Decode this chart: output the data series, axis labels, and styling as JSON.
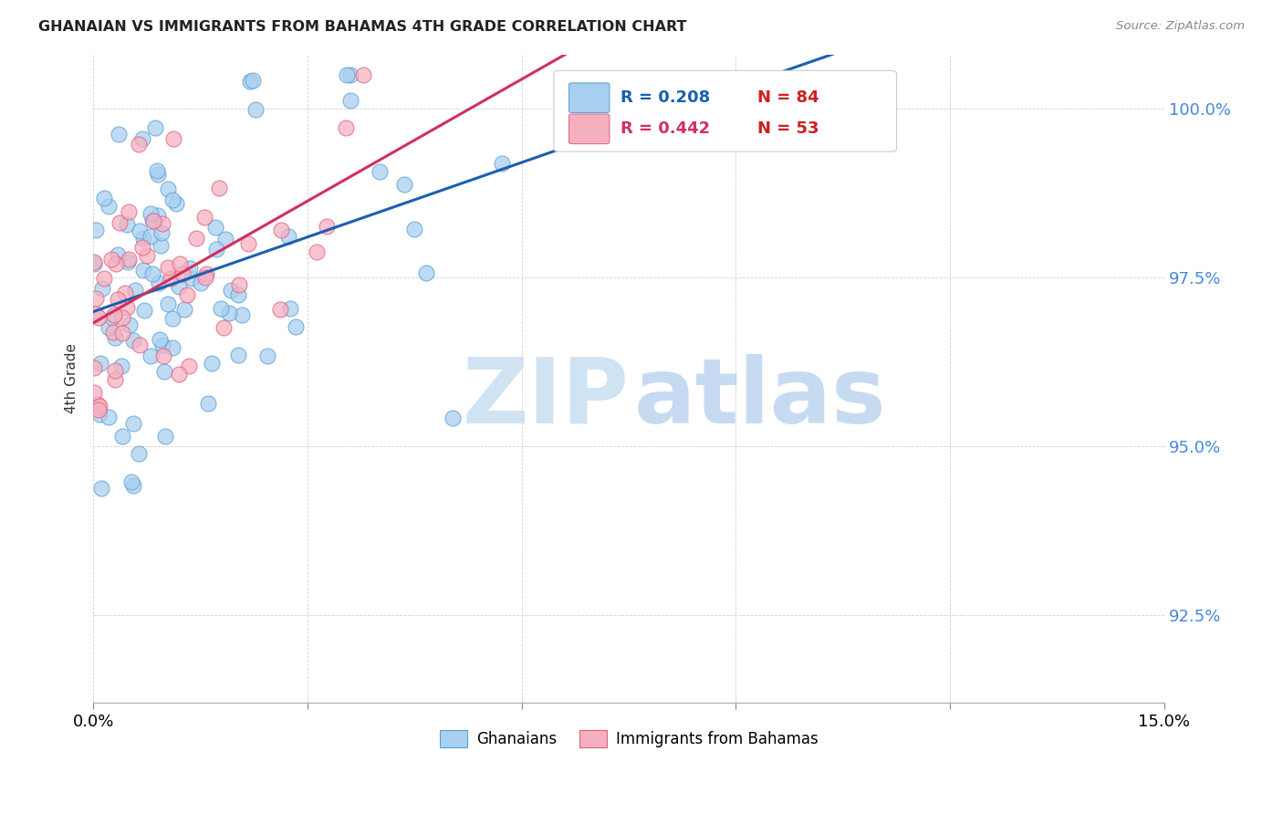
{
  "title": "GHANAIAN VS IMMIGRANTS FROM BAHAMAS 4TH GRADE CORRELATION CHART",
  "source": "Source: ZipAtlas.com",
  "ylabel": "4th Grade",
  "y_ticks": [
    92.5,
    95.0,
    97.5,
    100.0
  ],
  "x_min": 0.0,
  "x_max": 15.0,
  "y_min": 91.2,
  "y_max": 100.8,
  "blue_R": 0.208,
  "blue_N": 84,
  "pink_R": 0.442,
  "pink_N": 53,
  "blue_color": "#a8d0f0",
  "blue_edge_color": "#5a9fd4",
  "pink_color": "#f5b0c0",
  "pink_edge_color": "#e06080",
  "blue_line_color": "#1a60b0",
  "pink_line_color": "#d03060",
  "legend_blue_text_color": "#1a60b0",
  "legend_pink_text_color": "#d03060",
  "legend_N_color": "#cc2020",
  "ytick_color": "#4488dd",
  "watermark_ZIP_color": "#c8dff0",
  "watermark_atlas_color": "#a0c4e8"
}
